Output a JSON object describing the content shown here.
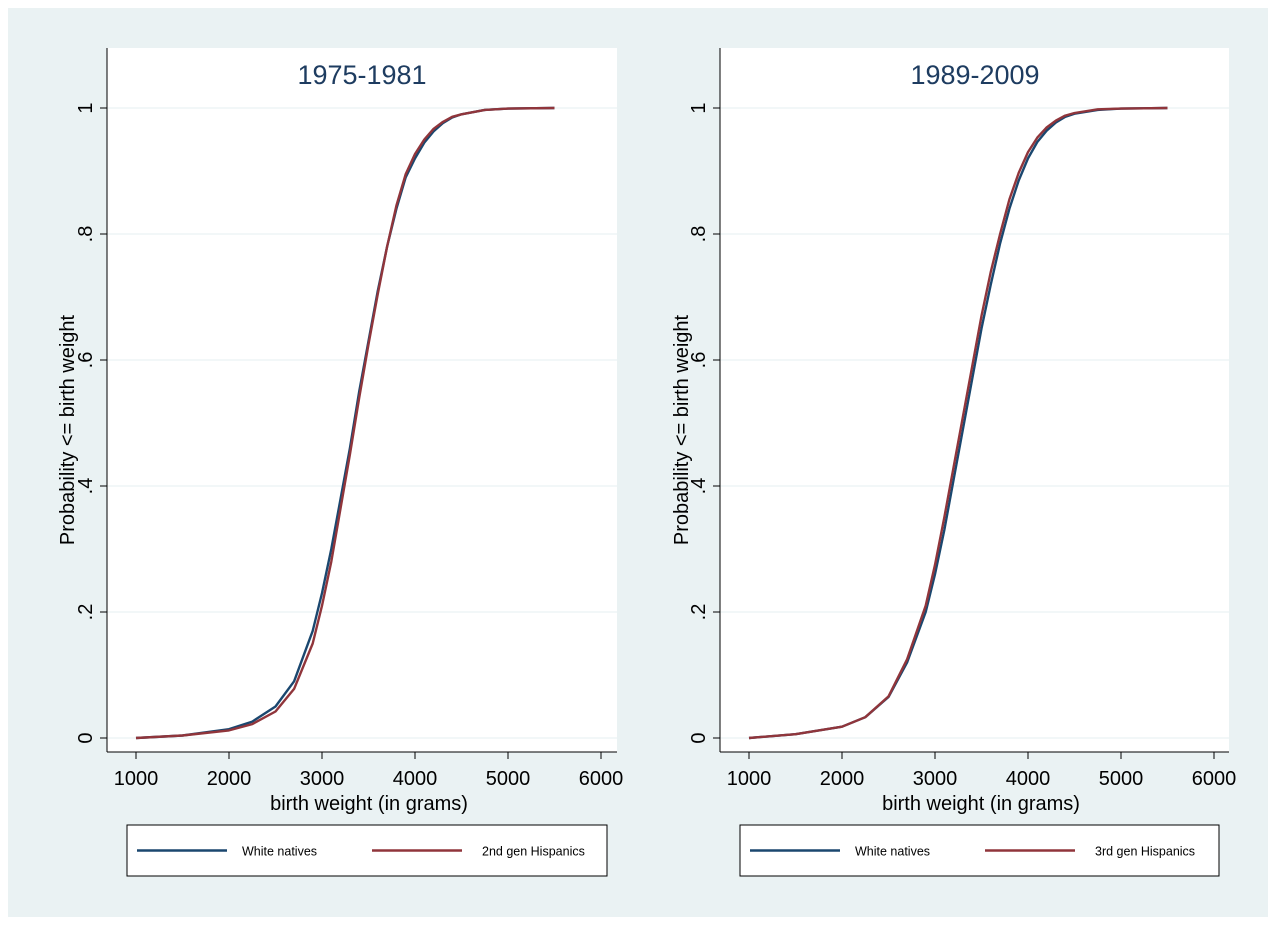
{
  "chart_data": [
    {
      "type": "line",
      "title": "1975-1981",
      "xlabel": "birth weight (in grams)",
      "ylabel": "Probability <= birth weight",
      "xlim": [
        1000,
        6000
      ],
      "ylim": [
        0,
        1
      ],
      "x_ticks": [
        "1000",
        "2000",
        "3000",
        "4000",
        "5000",
        "6000"
      ],
      "y_ticks": [
        "0",
        ".2",
        ".4",
        ".6",
        ".8",
        "1"
      ],
      "grid": true,
      "legend_position": "bottom",
      "series": [
        {
          "name": "White natives",
          "color": "#1a476f",
          "points": [
            [
              1000,
              0
            ],
            [
              1500,
              0.004
            ],
            [
              2000,
              0.014
            ],
            [
              2250,
              0.026
            ],
            [
              2500,
              0.05
            ],
            [
              2700,
              0.09
            ],
            [
              2900,
              0.17
            ],
            [
              3000,
              0.23
            ],
            [
              3100,
              0.3
            ],
            [
              3200,
              0.38
            ],
            [
              3300,
              0.46
            ],
            [
              3400,
              0.55
            ],
            [
              3500,
              0.63
            ],
            [
              3600,
              0.71
            ],
            [
              3700,
              0.78
            ],
            [
              3800,
              0.84
            ],
            [
              3900,
              0.89
            ],
            [
              4000,
              0.92
            ],
            [
              4100,
              0.945
            ],
            [
              4200,
              0.963
            ],
            [
              4300,
              0.976
            ],
            [
              4400,
              0.985
            ],
            [
              4500,
              0.99
            ],
            [
              4750,
              0.997
            ],
            [
              5000,
              0.999
            ],
            [
              5500,
              1.0
            ]
          ]
        },
        {
          "name": "2nd gen Hispanics",
          "color": "#90353b",
          "points": [
            [
              1000,
              0
            ],
            [
              1500,
              0.004
            ],
            [
              2000,
              0.012
            ],
            [
              2250,
              0.022
            ],
            [
              2500,
              0.042
            ],
            [
              2700,
              0.078
            ],
            [
              2900,
              0.15
            ],
            [
              3000,
              0.21
            ],
            [
              3100,
              0.28
            ],
            [
              3200,
              0.365
            ],
            [
              3300,
              0.45
            ],
            [
              3400,
              0.54
            ],
            [
              3500,
              0.625
            ],
            [
              3600,
              0.705
            ],
            [
              3700,
              0.78
            ],
            [
              3800,
              0.845
            ],
            [
              3900,
              0.895
            ],
            [
              4000,
              0.927
            ],
            [
              4100,
              0.95
            ],
            [
              4200,
              0.967
            ],
            [
              4300,
              0.978
            ],
            [
              4400,
              0.986
            ],
            [
              4500,
              0.99
            ],
            [
              4750,
              0.997
            ],
            [
              5000,
              0.999
            ],
            [
              5500,
              1.0
            ]
          ]
        }
      ]
    },
    {
      "type": "line",
      "title": "1989-2009",
      "xlabel": "birth weight (in grams)",
      "ylabel": "Probability <= birth weight",
      "xlim": [
        1000,
        6000
      ],
      "ylim": [
        0,
        1
      ],
      "x_ticks": [
        "1000",
        "2000",
        "3000",
        "4000",
        "5000",
        "6000"
      ],
      "y_ticks": [
        "0",
        ".2",
        ".4",
        ".6",
        ".8",
        "1"
      ],
      "grid": true,
      "legend_position": "bottom",
      "series": [
        {
          "name": "White natives",
          "color": "#1a476f",
          "points": [
            [
              1000,
              0
            ],
            [
              1500,
              0.006
            ],
            [
              2000,
              0.018
            ],
            [
              2250,
              0.033
            ],
            [
              2500,
              0.065
            ],
            [
              2700,
              0.12
            ],
            [
              2900,
              0.2
            ],
            [
              3000,
              0.26
            ],
            [
              3100,
              0.33
            ],
            [
              3200,
              0.41
            ],
            [
              3300,
              0.49
            ],
            [
              3400,
              0.57
            ],
            [
              3500,
              0.65
            ],
            [
              3600,
              0.72
            ],
            [
              3700,
              0.785
            ],
            [
              3800,
              0.84
            ],
            [
              3900,
              0.885
            ],
            [
              4000,
              0.92
            ],
            [
              4100,
              0.946
            ],
            [
              4200,
              0.964
            ],
            [
              4300,
              0.977
            ],
            [
              4400,
              0.986
            ],
            [
              4500,
              0.991
            ],
            [
              4750,
              0.997
            ],
            [
              5000,
              0.999
            ],
            [
              5500,
              1.0
            ]
          ]
        },
        {
          "name": "3rd gen Hispanics",
          "color": "#90353b",
          "points": [
            [
              1000,
              0
            ],
            [
              1500,
              0.006
            ],
            [
              2000,
              0.018
            ],
            [
              2250,
              0.033
            ],
            [
              2500,
              0.066
            ],
            [
              2700,
              0.125
            ],
            [
              2900,
              0.21
            ],
            [
              3000,
              0.275
            ],
            [
              3100,
              0.35
            ],
            [
              3200,
              0.43
            ],
            [
              3300,
              0.51
            ],
            [
              3400,
              0.59
            ],
            [
              3500,
              0.67
            ],
            [
              3600,
              0.74
            ],
            [
              3700,
              0.8
            ],
            [
              3800,
              0.855
            ],
            [
              3900,
              0.897
            ],
            [
              4000,
              0.93
            ],
            [
              4100,
              0.953
            ],
            [
              4200,
              0.969
            ],
            [
              4300,
              0.98
            ],
            [
              4400,
              0.988
            ],
            [
              4500,
              0.992
            ],
            [
              4750,
              0.998
            ],
            [
              5000,
              0.999
            ],
            [
              5500,
              1.0
            ]
          ]
        }
      ]
    }
  ]
}
